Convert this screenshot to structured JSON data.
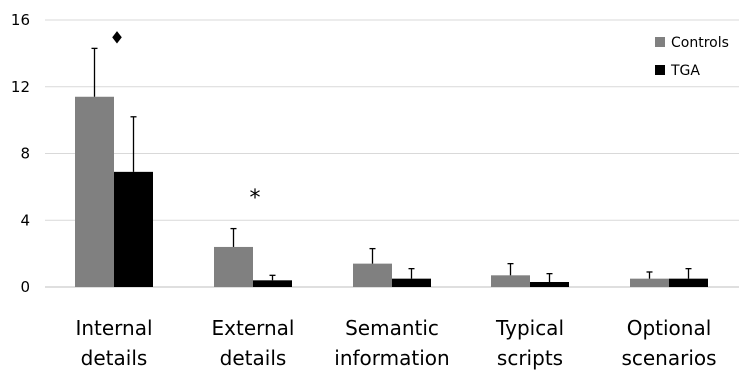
{
  "chart_data": {
    "type": "bar",
    "categories": [
      [
        "Internal",
        "details"
      ],
      [
        "External",
        "details"
      ],
      [
        "Semantic",
        "information"
      ],
      [
        "Typical",
        "scripts"
      ],
      [
        "Optional",
        "scenarios"
      ]
    ],
    "series": [
      {
        "name": "Controls",
        "color": "#808080",
        "values": [
          11.4,
          2.4,
          1.4,
          0.7,
          0.5
        ],
        "error": [
          2.9,
          1.1,
          0.9,
          0.7,
          0.4
        ]
      },
      {
        "name": "TGA",
        "color": "#000000",
        "values": [
          6.9,
          0.4,
          0.5,
          0.3,
          0.5
        ],
        "error": [
          3.3,
          0.3,
          0.6,
          0.5,
          0.6
        ]
      }
    ],
    "ylim": [
      0,
      16
    ],
    "yticks": [
      0,
      4,
      8,
      12,
      16
    ],
    "grid": true,
    "legend_position": "top-right",
    "annotations": [
      {
        "text": "♦",
        "category_index": 0,
        "y": 14.9
      },
      {
        "text": "*",
        "category_index": 1,
        "y": 5.5
      }
    ]
  }
}
